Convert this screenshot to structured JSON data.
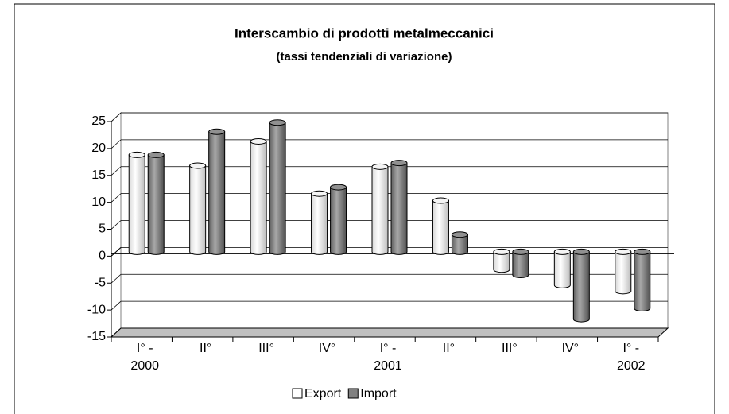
{
  "chart_data": {
    "type": "bar3d",
    "title": "Interscambio di prodotti metalmeccanici",
    "subtitle": "(tassi tendenziali di variazione)",
    "categories": [
      "I° -\n2000",
      "II°",
      "III°",
      "IV°",
      "I° -\n2001",
      "II°",
      "III°",
      "IV°",
      "I° -\n2002"
    ],
    "series": [
      {
        "name": "Export",
        "color": "#ffffff",
        "values": [
          18,
          16,
          20.5,
          10.8,
          15.8,
          9.5,
          -3.3,
          -6.2,
          -7.3
        ]
      },
      {
        "name": "Import",
        "color": "#808080",
        "values": [
          18,
          22.3,
          24,
          12,
          16.5,
          3.2,
          -4.3,
          -12.5,
          -10.5
        ]
      }
    ],
    "ylim": [
      -15,
      25
    ],
    "yticks": [
      -15,
      -10,
      -5,
      0,
      5,
      10,
      15,
      20,
      25
    ],
    "grid": true,
    "legend": "bottom"
  }
}
